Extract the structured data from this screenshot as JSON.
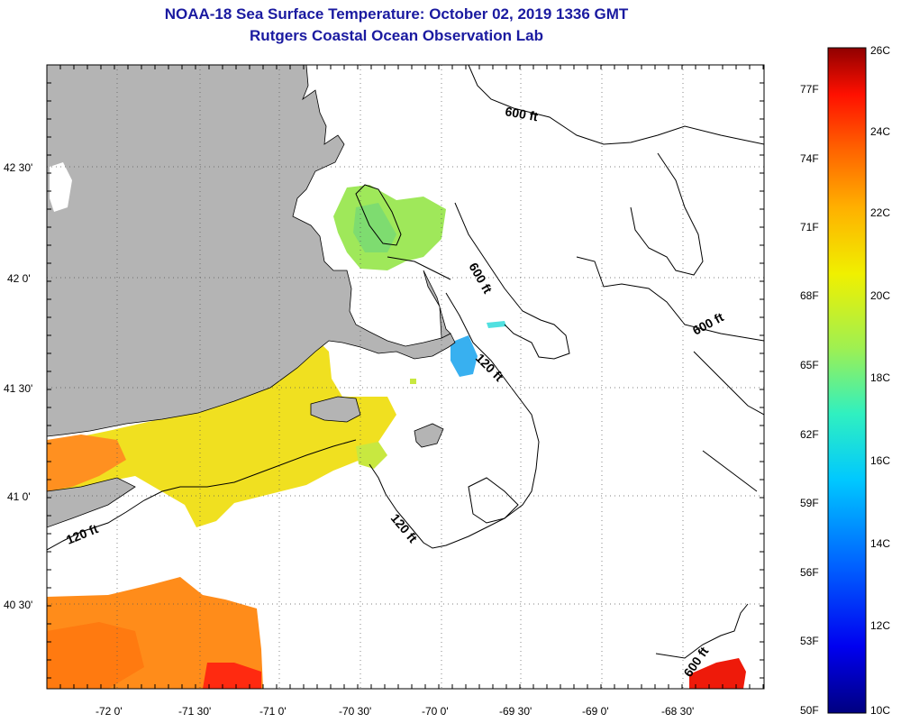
{
  "title": {
    "line1": "NOAA-18 Sea Surface Temperature:  October 02, 2019 1336 GMT",
    "line2": "Rutgers Coastal Ocean Observation Lab"
  },
  "map": {
    "longitude_labels": [
      "-72 0'",
      "-71 30'",
      "-71 0'",
      "-70 30'",
      "-70 0'",
      "-69 30'",
      "-69 0'",
      "-68 30'"
    ],
    "latitude_labels": [
      "42 30'",
      "42 0'",
      "41 30'",
      "41 0'",
      "40 30'"
    ],
    "depth_labels": [
      {
        "id": "600-north",
        "text": "600 ft"
      },
      {
        "id": "600-georges",
        "text": "600 ft"
      },
      {
        "id": "600-east",
        "text": "600 ft"
      },
      {
        "id": "120-capecod",
        "text": "120 ft"
      },
      {
        "id": "120-west",
        "text": "120 ft"
      },
      {
        "id": "120-nantucket",
        "text": "120 ft"
      },
      {
        "id": "600-southeast",
        "text": "600 ft"
      }
    ],
    "colors": {
      "land": "#b4b4b4",
      "background": "#ffffff"
    }
  },
  "colorbar": {
    "celsius_labels": [
      "26C",
      "24C",
      "22C",
      "20C",
      "18C",
      "16C",
      "14C",
      "12C",
      "10C"
    ],
    "fahrenheit_labels": [
      "77F",
      "74F",
      "71F",
      "68F",
      "65F",
      "62F",
      "59F",
      "56F",
      "53F",
      "50F"
    ],
    "gradient": [
      "#000080",
      "#0000f0",
      "#0060ff",
      "#00c8ff",
      "#30f0c0",
      "#a0f050",
      "#f0f000",
      "#ffb000",
      "#ff6000",
      "#ff1000",
      "#900000"
    ]
  }
}
